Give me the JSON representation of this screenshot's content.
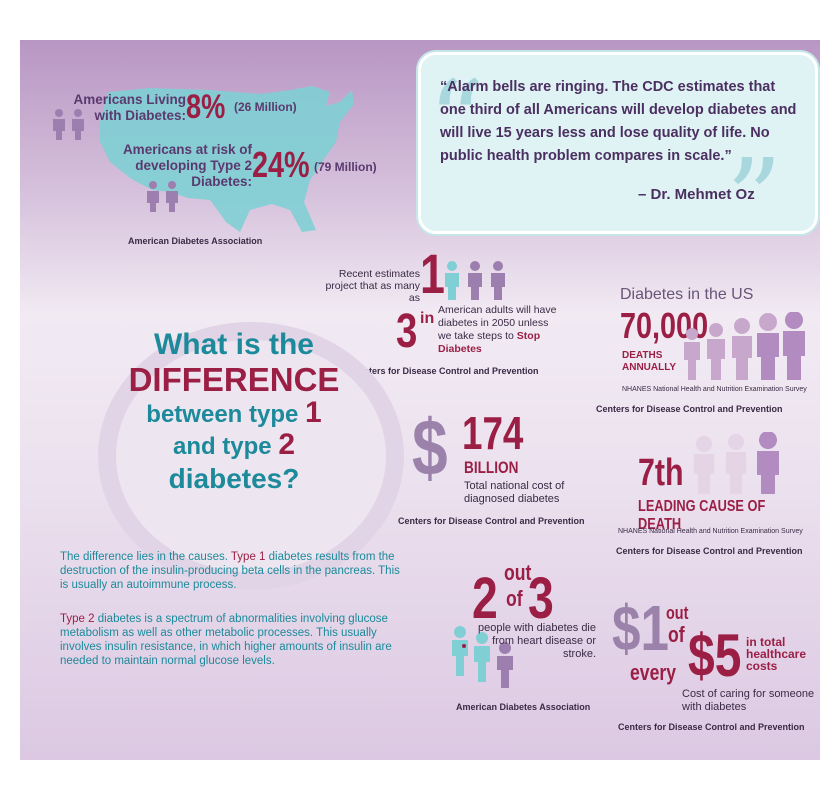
{
  "colors": {
    "purple": "#5a3a6e",
    "teal": "#1c8a9a",
    "maroon": "#9b1f45",
    "lavender": "#b28bc0",
    "icon_person": "person-icon"
  },
  "us_stats": {
    "living_label": "Americans Living with Diabetes:",
    "living_line1": "Americans Living",
    "living_line2": "with Diabetes:",
    "living_pct": "8%",
    "living_count": "(26 Million)",
    "risk_line1": "Americans at risk of",
    "risk_line2": "developing Type 2",
    "risk_line3": "Diabetes:",
    "risk_pct": "24%",
    "risk_count": "(79 Million)",
    "source": "American Diabetes Association"
  },
  "quote": {
    "text": "“Alarm bells are ringing. The CDC estimates that one third of all Americans will develop diabetes and will live 15 years less and lose quality of life. No public health problem compares in scale.”",
    "author": "– Dr. Mehmet Oz"
  },
  "projection": {
    "lead": "Recent estimates project that as many as",
    "numerator": "1",
    "in": "in",
    "denominator": "3",
    "text_part1": "American adults will have diabetes in 2050 unless we take steps to",
    "text_link": "Stop Diabetes",
    "source": "Centers for Disease Control and Prevention"
  },
  "deaths": {
    "heading": "Diabetes in the US",
    "number": "70,000",
    "label1": "DEATHS",
    "label2": "ANNUALLY",
    "survey": "NHANES National Health and Nutrition Examination Survey",
    "source": "Centers for Disease Control and Prevention"
  },
  "headline": {
    "line1": "What is the",
    "line2": "DIFFERENCE",
    "line3a": "between type",
    "line3b": "1",
    "line4a": "and type",
    "line4b": "2",
    "line5": "diabetes?"
  },
  "cost": {
    "symbol": "$",
    "number": "174",
    "unit": "BILLION",
    "desc": "Total national cost of diagnosed diabetes",
    "source": "Centers for Disease Control and Prevention"
  },
  "rank": {
    "number": "7th",
    "label": "LEADING CAUSE OF DEATH",
    "survey": "NHANES National Health and Nutrition Examination Survey",
    "source": "Centers for Disease Control and Prevention"
  },
  "explanation": {
    "p1_lead": "The difference lies in the causes.",
    "p1_type": "Type 1",
    "p1_rest": "diabetes results from the destruction of the insulin-producing beta cells in the pancreas. This is usually an autoimmune process.",
    "p2_type": "Type 2",
    "p2_rest": "diabetes is a spectrum of abnormalities involving glucose metabolism as well as other metabolic processes. This usually involves insulin resistance, in which higher amounts of insulin are needed to maintain normal glucose levels."
  },
  "heart": {
    "num": "2",
    "out": "out",
    "of": "of",
    "den": "3",
    "desc": "people with diabetes die from heart disease or stroke.",
    "source": "American Diabetes Association"
  },
  "care": {
    "num": "$1",
    "out": "out",
    "of": "of",
    "every": "every",
    "den": "$5",
    "tag": "in total healthcare costs",
    "desc": "Cost of caring for someone with diabetes",
    "source": "Centers for Disease Control and Prevention"
  }
}
